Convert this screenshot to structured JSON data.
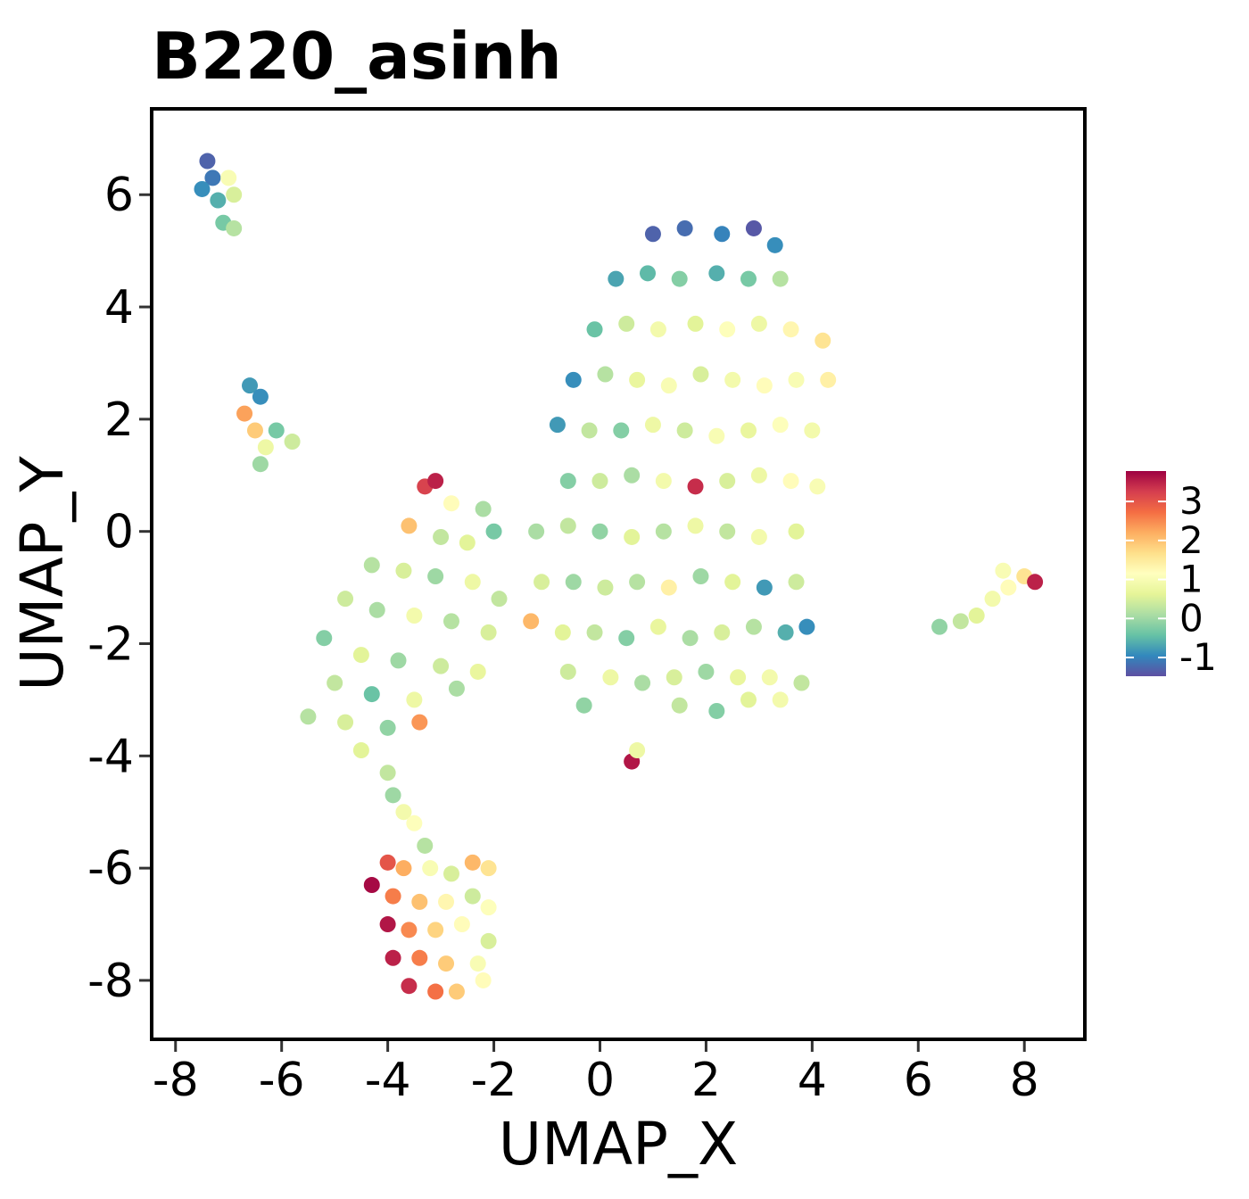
{
  "chart_data": {
    "type": "scatter",
    "title": "B220_asinh",
    "x_label": "UMAP_X",
    "y_label": "UMAP_Y",
    "xlim": [
      -8.45,
      9.14
    ],
    "ylim": [
      -9.05,
      7.53
    ],
    "xticks": [
      -8,
      -6,
      -4,
      -2,
      0,
      2,
      4,
      6,
      8
    ],
    "yticks": [
      -8,
      -6,
      -4,
      -2,
      0,
      2,
      4,
      6
    ],
    "colorlim": [
      -1.48,
      3.78
    ],
    "colorticks": [
      -1,
      0,
      1,
      2,
      3
    ],
    "colorscale": [
      "#5e4fa2",
      "#3288bd",
      "#66c2a5",
      "#abdda4",
      "#e6f598",
      "#ffffbf",
      "#fee08b",
      "#fdae61",
      "#f46d43",
      "#d53e4f",
      "#9e0142"
    ],
    "points": [
      {
        "x": -7.4,
        "y": 6.6,
        "value": -1.3
      },
      {
        "x": -7.3,
        "y": 6.3,
        "value": -1.1
      },
      {
        "x": -7.5,
        "y": 6.1,
        "value": -0.9
      },
      {
        "x": -7.2,
        "y": 5.9,
        "value": -0.6
      },
      {
        "x": -7.0,
        "y": 6.3,
        "value": 1.0
      },
      {
        "x": -6.9,
        "y": 6.0,
        "value": 0.5
      },
      {
        "x": -7.1,
        "y": 5.5,
        "value": -0.3
      },
      {
        "x": -6.9,
        "y": 5.4,
        "value": 0.2
      },
      {
        "x": -6.6,
        "y": 2.6,
        "value": -0.8
      },
      {
        "x": -6.4,
        "y": 2.4,
        "value": -0.9
      },
      {
        "x": -6.7,
        "y": 2.1,
        "value": 2.3
      },
      {
        "x": -6.5,
        "y": 1.8,
        "value": 1.9
      },
      {
        "x": -6.3,
        "y": 1.5,
        "value": 0.8
      },
      {
        "x": -6.1,
        "y": 1.8,
        "value": -0.3
      },
      {
        "x": -5.8,
        "y": 1.6,
        "value": 0.4
      },
      {
        "x": -6.4,
        "y": 1.2,
        "value": 0.0
      },
      {
        "x": -3.3,
        "y": 0.8,
        "value": 3.2
      },
      {
        "x": -3.1,
        "y": 0.9,
        "value": 3.5
      },
      {
        "x": -2.8,
        "y": 0.5,
        "value": 1.2
      },
      {
        "x": -2.2,
        "y": 0.4,
        "value": 0.1
      },
      {
        "x": -3.6,
        "y": 0.1,
        "value": 2.0
      },
      {
        "x": -3.0,
        "y": -0.1,
        "value": 0.3
      },
      {
        "x": -2.5,
        "y": -0.2,
        "value": 0.6
      },
      {
        "x": -2.0,
        "y": 0.0,
        "value": -0.3
      },
      {
        "x": -4.3,
        "y": -0.6,
        "value": 0.2
      },
      {
        "x": -3.7,
        "y": -0.7,
        "value": 0.5
      },
      {
        "x": -3.1,
        "y": -0.8,
        "value": 0.0
      },
      {
        "x": -2.4,
        "y": -0.9,
        "value": 0.8
      },
      {
        "x": -1.9,
        "y": -1.2,
        "value": 0.3
      },
      {
        "x": -4.8,
        "y": -1.2,
        "value": 0.4
      },
      {
        "x": -4.2,
        "y": -1.4,
        "value": 0.1
      },
      {
        "x": -3.5,
        "y": -1.5,
        "value": 0.9
      },
      {
        "x": -2.8,
        "y": -1.6,
        "value": 0.2
      },
      {
        "x": -2.1,
        "y": -1.8,
        "value": 0.5
      },
      {
        "x": -5.2,
        "y": -1.9,
        "value": -0.2
      },
      {
        "x": -4.5,
        "y": -2.2,
        "value": 0.6
      },
      {
        "x": -3.8,
        "y": -2.3,
        "value": 0.0
      },
      {
        "x": -3.0,
        "y": -2.4,
        "value": 0.4
      },
      {
        "x": -2.3,
        "y": -2.5,
        "value": 0.7
      },
      {
        "x": -5.0,
        "y": -2.7,
        "value": 0.3
      },
      {
        "x": -4.3,
        "y": -2.9,
        "value": -0.4
      },
      {
        "x": -3.5,
        "y": -3.0,
        "value": 0.8
      },
      {
        "x": -2.7,
        "y": -2.8,
        "value": 0.1
      },
      {
        "x": -5.5,
        "y": -3.3,
        "value": 0.2
      },
      {
        "x": -4.8,
        "y": -3.4,
        "value": 0.5
      },
      {
        "x": -4.0,
        "y": -3.5,
        "value": -0.1
      },
      {
        "x": -3.4,
        "y": -3.4,
        "value": 2.4
      },
      {
        "x": -4.5,
        "y": -3.9,
        "value": 0.6
      },
      {
        "x": -4.0,
        "y": -4.3,
        "value": 0.3
      },
      {
        "x": -3.9,
        "y": -4.7,
        "value": 0.0
      },
      {
        "x": -3.7,
        "y": -5.0,
        "value": 0.9
      },
      {
        "x": -3.5,
        "y": -5.2,
        "value": 1.1
      },
      {
        "x": -3.3,
        "y": -5.6,
        "value": 0.2
      },
      {
        "x": -4.0,
        "y": -5.9,
        "value": 3.0
      },
      {
        "x": -3.7,
        "y": -6.0,
        "value": 2.2
      },
      {
        "x": -3.2,
        "y": -6.0,
        "value": 1.0
      },
      {
        "x": -2.8,
        "y": -6.1,
        "value": 0.5
      },
      {
        "x": -2.4,
        "y": -5.9,
        "value": 2.1
      },
      {
        "x": -2.1,
        "y": -6.0,
        "value": 1.6
      },
      {
        "x": -4.3,
        "y": -6.3,
        "value": 3.7
      },
      {
        "x": -3.9,
        "y": -6.5,
        "value": 2.6
      },
      {
        "x": -3.4,
        "y": -6.6,
        "value": 2.0
      },
      {
        "x": -2.9,
        "y": -6.6,
        "value": 1.3
      },
      {
        "x": -2.4,
        "y": -6.5,
        "value": 0.4
      },
      {
        "x": -2.1,
        "y": -6.7,
        "value": 1.1
      },
      {
        "x": -4.0,
        "y": -7.0,
        "value": 3.6
      },
      {
        "x": -3.6,
        "y": -7.1,
        "value": 2.5
      },
      {
        "x": -3.1,
        "y": -7.1,
        "value": 1.8
      },
      {
        "x": -2.6,
        "y": -7.0,
        "value": 1.2
      },
      {
        "x": -2.1,
        "y": -7.3,
        "value": 0.5
      },
      {
        "x": -3.9,
        "y": -7.6,
        "value": 3.5
      },
      {
        "x": -3.4,
        "y": -7.6,
        "value": 2.6
      },
      {
        "x": -2.9,
        "y": -7.7,
        "value": 1.9
      },
      {
        "x": -2.3,
        "y": -7.7,
        "value": 1.0
      },
      {
        "x": -3.6,
        "y": -8.1,
        "value": 3.4
      },
      {
        "x": -3.1,
        "y": -8.2,
        "value": 2.7
      },
      {
        "x": -2.7,
        "y": -8.2,
        "value": 1.9
      },
      {
        "x": -2.2,
        "y": -8.0,
        "value": 1.2
      },
      {
        "x": 1.0,
        "y": 5.3,
        "value": -1.3
      },
      {
        "x": 1.6,
        "y": 5.4,
        "value": -1.2
      },
      {
        "x": 2.3,
        "y": 5.3,
        "value": -1.0
      },
      {
        "x": 2.9,
        "y": 5.4,
        "value": -1.4
      },
      {
        "x": 3.3,
        "y": 5.1,
        "value": -0.9
      },
      {
        "x": 0.3,
        "y": 4.5,
        "value": -0.7
      },
      {
        "x": 0.9,
        "y": 4.6,
        "value": -0.5
      },
      {
        "x": 1.5,
        "y": 4.5,
        "value": -0.2
      },
      {
        "x": 2.2,
        "y": 4.6,
        "value": -0.6
      },
      {
        "x": 2.8,
        "y": 4.5,
        "value": -0.3
      },
      {
        "x": 3.4,
        "y": 4.5,
        "value": 0.2
      },
      {
        "x": -0.1,
        "y": 3.6,
        "value": -0.4
      },
      {
        "x": 0.5,
        "y": 3.7,
        "value": 0.4
      },
      {
        "x": 1.1,
        "y": 3.6,
        "value": 0.9
      },
      {
        "x": 1.8,
        "y": 3.7,
        "value": 0.6
      },
      {
        "x": 2.4,
        "y": 3.6,
        "value": 1.1
      },
      {
        "x": 3.0,
        "y": 3.7,
        "value": 0.8
      },
      {
        "x": 3.6,
        "y": 3.6,
        "value": 1.3
      },
      {
        "x": 4.2,
        "y": 3.4,
        "value": 1.6
      },
      {
        "x": -0.5,
        "y": 2.7,
        "value": -0.9
      },
      {
        "x": 0.1,
        "y": 2.8,
        "value": 0.2
      },
      {
        "x": 0.7,
        "y": 2.7,
        "value": 0.7
      },
      {
        "x": 1.3,
        "y": 2.6,
        "value": 1.0
      },
      {
        "x": 1.9,
        "y": 2.8,
        "value": 0.5
      },
      {
        "x": 2.5,
        "y": 2.7,
        "value": 0.9
      },
      {
        "x": 3.1,
        "y": 2.6,
        "value": 1.2
      },
      {
        "x": 3.7,
        "y": 2.7,
        "value": 1.0
      },
      {
        "x": 4.3,
        "y": 2.7,
        "value": 1.4
      },
      {
        "x": -0.8,
        "y": 1.9,
        "value": -0.8
      },
      {
        "x": -0.2,
        "y": 1.8,
        "value": 0.3
      },
      {
        "x": 0.4,
        "y": 1.8,
        "value": -0.2
      },
      {
        "x": 1.0,
        "y": 1.9,
        "value": 0.8
      },
      {
        "x": 1.6,
        "y": 1.8,
        "value": 0.4
      },
      {
        "x": 2.2,
        "y": 1.7,
        "value": 1.0
      },
      {
        "x": 2.8,
        "y": 1.8,
        "value": 0.7
      },
      {
        "x": 3.4,
        "y": 1.9,
        "value": 1.1
      },
      {
        "x": 4.0,
        "y": 1.8,
        "value": 0.9
      },
      {
        "x": -0.6,
        "y": 0.9,
        "value": -0.2
      },
      {
        "x": 0.0,
        "y": 0.9,
        "value": 0.4
      },
      {
        "x": 0.6,
        "y": 1.0,
        "value": 0.1
      },
      {
        "x": 1.2,
        "y": 0.9,
        "value": 0.9
      },
      {
        "x": 1.8,
        "y": 0.8,
        "value": 3.4
      },
      {
        "x": 2.4,
        "y": 0.9,
        "value": 0.5
      },
      {
        "x": 3.0,
        "y": 1.0,
        "value": 0.8
      },
      {
        "x": 3.6,
        "y": 0.9,
        "value": 1.2
      },
      {
        "x": 4.1,
        "y": 0.8,
        "value": 1.0
      },
      {
        "x": -1.2,
        "y": 0.0,
        "value": 0.1
      },
      {
        "x": -0.6,
        "y": 0.1,
        "value": 0.3
      },
      {
        "x": 0.0,
        "y": 0.0,
        "value": -0.1
      },
      {
        "x": 0.6,
        "y": -0.1,
        "value": 0.6
      },
      {
        "x": 1.2,
        "y": 0.0,
        "value": 0.2
      },
      {
        "x": 1.8,
        "y": 0.1,
        "value": 0.8
      },
      {
        "x": 2.4,
        "y": 0.0,
        "value": 0.3
      },
      {
        "x": 3.0,
        "y": -0.1,
        "value": 0.9
      },
      {
        "x": 3.7,
        "y": 0.0,
        "value": 0.6
      },
      {
        "x": -1.1,
        "y": -0.9,
        "value": 0.5
      },
      {
        "x": -0.5,
        "y": -0.9,
        "value": 0.0
      },
      {
        "x": 0.1,
        "y": -1.0,
        "value": 0.4
      },
      {
        "x": 0.7,
        "y": -0.9,
        "value": 0.2
      },
      {
        "x": 1.3,
        "y": -1.0,
        "value": 1.4
      },
      {
        "x": 1.9,
        "y": -0.8,
        "value": 0.0
      },
      {
        "x": 2.5,
        "y": -0.9,
        "value": 0.6
      },
      {
        "x": 3.1,
        "y": -1.0,
        "value": -0.8
      },
      {
        "x": 3.7,
        "y": -0.9,
        "value": 0.4
      },
      {
        "x": -1.3,
        "y": -1.6,
        "value": 2.1
      },
      {
        "x": -0.7,
        "y": -1.8,
        "value": 0.6
      },
      {
        "x": -0.1,
        "y": -1.8,
        "value": 0.3
      },
      {
        "x": 0.5,
        "y": -1.9,
        "value": -0.2
      },
      {
        "x": 1.1,
        "y": -1.7,
        "value": 0.7
      },
      {
        "x": 1.7,
        "y": -1.9,
        "value": 0.1
      },
      {
        "x": 2.3,
        "y": -1.8,
        "value": 0.5
      },
      {
        "x": 2.9,
        "y": -1.7,
        "value": 0.2
      },
      {
        "x": 3.5,
        "y": -1.8,
        "value": -0.6
      },
      {
        "x": 3.9,
        "y": -1.7,
        "value": -0.9
      },
      {
        "x": -0.6,
        "y": -2.5,
        "value": 0.4
      },
      {
        "x": 0.2,
        "y": -2.6,
        "value": 0.8
      },
      {
        "x": 0.8,
        "y": -2.7,
        "value": 0.1
      },
      {
        "x": 1.4,
        "y": -2.6,
        "value": 0.5
      },
      {
        "x": 2.0,
        "y": -2.5,
        "value": 0.0
      },
      {
        "x": 2.6,
        "y": -2.6,
        "value": 0.7
      },
      {
        "x": 3.2,
        "y": -2.6,
        "value": 0.9
      },
      {
        "x": 3.8,
        "y": -2.7,
        "value": 0.3
      },
      {
        "x": 1.5,
        "y": -3.1,
        "value": 0.3
      },
      {
        "x": 2.2,
        "y": -3.2,
        "value": -0.2
      },
      {
        "x": 2.8,
        "y": -3.0,
        "value": 0.6
      },
      {
        "x": 3.4,
        "y": -3.0,
        "value": 0.9
      },
      {
        "x": -0.3,
        "y": -3.1,
        "value": -0.1
      },
      {
        "x": 0.6,
        "y": -4.1,
        "value": 3.6
      },
      {
        "x": 0.7,
        "y": -3.9,
        "value": 0.8
      },
      {
        "x": 6.4,
        "y": -1.7,
        "value": -0.1
      },
      {
        "x": 6.8,
        "y": -1.6,
        "value": 0.3
      },
      {
        "x": 7.1,
        "y": -1.5,
        "value": 0.6
      },
      {
        "x": 7.4,
        "y": -1.2,
        "value": 0.9
      },
      {
        "x": 7.7,
        "y": -1.0,
        "value": 1.2
      },
      {
        "x": 8.0,
        "y": -0.8,
        "value": 1.6
      },
      {
        "x": 8.2,
        "y": -0.9,
        "value": 3.5
      },
      {
        "x": 7.6,
        "y": -0.7,
        "value": 1.0
      }
    ]
  }
}
